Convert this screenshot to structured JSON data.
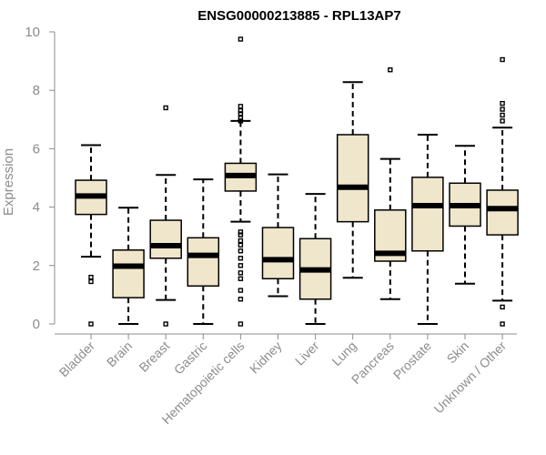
{
  "chart_data": {
    "type": "boxplot",
    "title": "ENSG00000213885 - RPL13AP7",
    "xlabel": "",
    "ylabel": "Expression",
    "ylim": [
      0,
      10
    ],
    "yticks": [
      0,
      2,
      4,
      6,
      8,
      10
    ],
    "box_fill": "#efe6cc",
    "categories": [
      "Bladder",
      "Brain",
      "Breast",
      "Gastric",
      "Hematopoietic cells",
      "Kidney",
      "Liver",
      "Lung",
      "Pancreas",
      "Prostate",
      "Skin",
      "Unknown / Other"
    ],
    "boxes": [
      {
        "name": "Bladder",
        "whislo": 2.3,
        "q1": 3.75,
        "med": 4.38,
        "q3": 4.92,
        "whishi": 6.12,
        "fliers": [
          1.6,
          1.45,
          0.0
        ]
      },
      {
        "name": "Brain",
        "whislo": 0.0,
        "q1": 0.9,
        "med": 1.98,
        "q3": 2.53,
        "whishi": 3.98,
        "fliers": []
      },
      {
        "name": "Breast",
        "whislo": 0.82,
        "q1": 2.25,
        "med": 2.68,
        "q3": 3.55,
        "whishi": 5.1,
        "fliers": [
          7.4,
          0.0
        ]
      },
      {
        "name": "Gastric",
        "whislo": 0.0,
        "q1": 1.3,
        "med": 2.35,
        "q3": 2.95,
        "whishi": 4.95,
        "fliers": []
      },
      {
        "name": "Hematopoietic cells",
        "whislo": 3.5,
        "q1": 4.55,
        "med": 5.08,
        "q3": 5.5,
        "whishi": 6.95,
        "fliers": [
          9.75,
          7.45,
          7.3,
          7.2,
          7.05,
          6.95,
          3.15,
          3.05,
          2.85,
          2.7,
          2.5,
          2.25,
          2.0,
          1.75,
          1.55,
          1.15,
          0.85,
          0.0
        ]
      },
      {
        "name": "Kidney",
        "whislo": 0.95,
        "q1": 1.55,
        "med": 2.2,
        "q3": 3.3,
        "whishi": 5.12,
        "fliers": []
      },
      {
        "name": "Liver",
        "whislo": 0.0,
        "q1": 0.85,
        "med": 1.85,
        "q3": 2.92,
        "whishi": 4.45,
        "fliers": []
      },
      {
        "name": "Lung",
        "whislo": 1.58,
        "q1": 3.5,
        "med": 4.68,
        "q3": 6.48,
        "whishi": 8.28,
        "fliers": []
      },
      {
        "name": "Pancreas",
        "whislo": 0.85,
        "q1": 2.15,
        "med": 2.42,
        "q3": 3.9,
        "whishi": 5.65,
        "fliers": [
          8.7
        ]
      },
      {
        "name": "Prostate",
        "whislo": 0.0,
        "q1": 2.5,
        "med": 4.05,
        "q3": 5.02,
        "whishi": 6.48,
        "fliers": []
      },
      {
        "name": "Skin",
        "whislo": 1.38,
        "q1": 3.35,
        "med": 4.05,
        "q3": 4.82,
        "whishi": 6.1,
        "fliers": []
      },
      {
        "name": "Unknown / Other",
        "whislo": 0.8,
        "q1": 3.05,
        "med": 3.95,
        "q3": 4.58,
        "whishi": 6.72,
        "fliers": [
          9.05,
          7.55,
          7.35,
          7.15,
          6.95,
          0.58,
          0.0
        ]
      }
    ]
  }
}
